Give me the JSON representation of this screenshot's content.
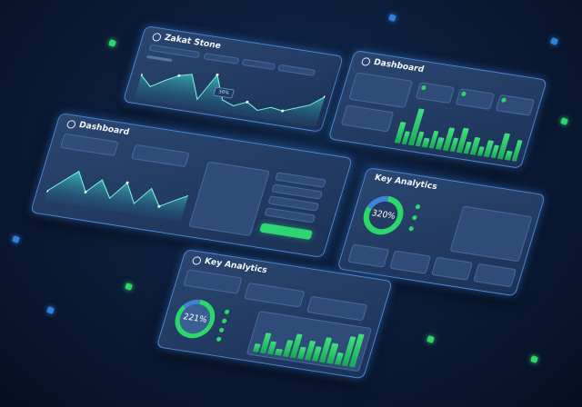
{
  "colors": {
    "background": "#0b1a36",
    "panel": "#1f3457",
    "accent_green": "#2bd66a",
    "accent_blue": "#4a86cf"
  },
  "panels": {
    "zakat": {
      "title": "Zakat Stone",
      "badge": "50%",
      "area_values": [
        60,
        35,
        55,
        72,
        80,
        22,
        88,
        30,
        20,
        34,
        18,
        30,
        26,
        38,
        50,
        75
      ]
    },
    "dashboard_right": {
      "title": "Dashboard",
      "bar_values": [
        35,
        22,
        62,
        25,
        16,
        30,
        20,
        38,
        24,
        42,
        20,
        30,
        16,
        28,
        22,
        44,
        16,
        36
      ]
    },
    "dashboard_main": {
      "title": "Dashboard",
      "area_values": [
        20,
        45,
        70,
        30,
        60,
        25,
        62,
        22,
        58,
        24,
        40,
        55
      ]
    },
    "analytics_right": {
      "title": "Key Analytics",
      "donut_value": "320%",
      "donut_fill": 0.8
    },
    "analytics_bottom": {
      "title": "Key Analytics",
      "donut_value": "221%",
      "donut_fill": 0.85,
      "bar_values": [
        20,
        50,
        32,
        15,
        42,
        60,
        30,
        48,
        36,
        62,
        50,
        30,
        72,
        82
      ]
    }
  }
}
